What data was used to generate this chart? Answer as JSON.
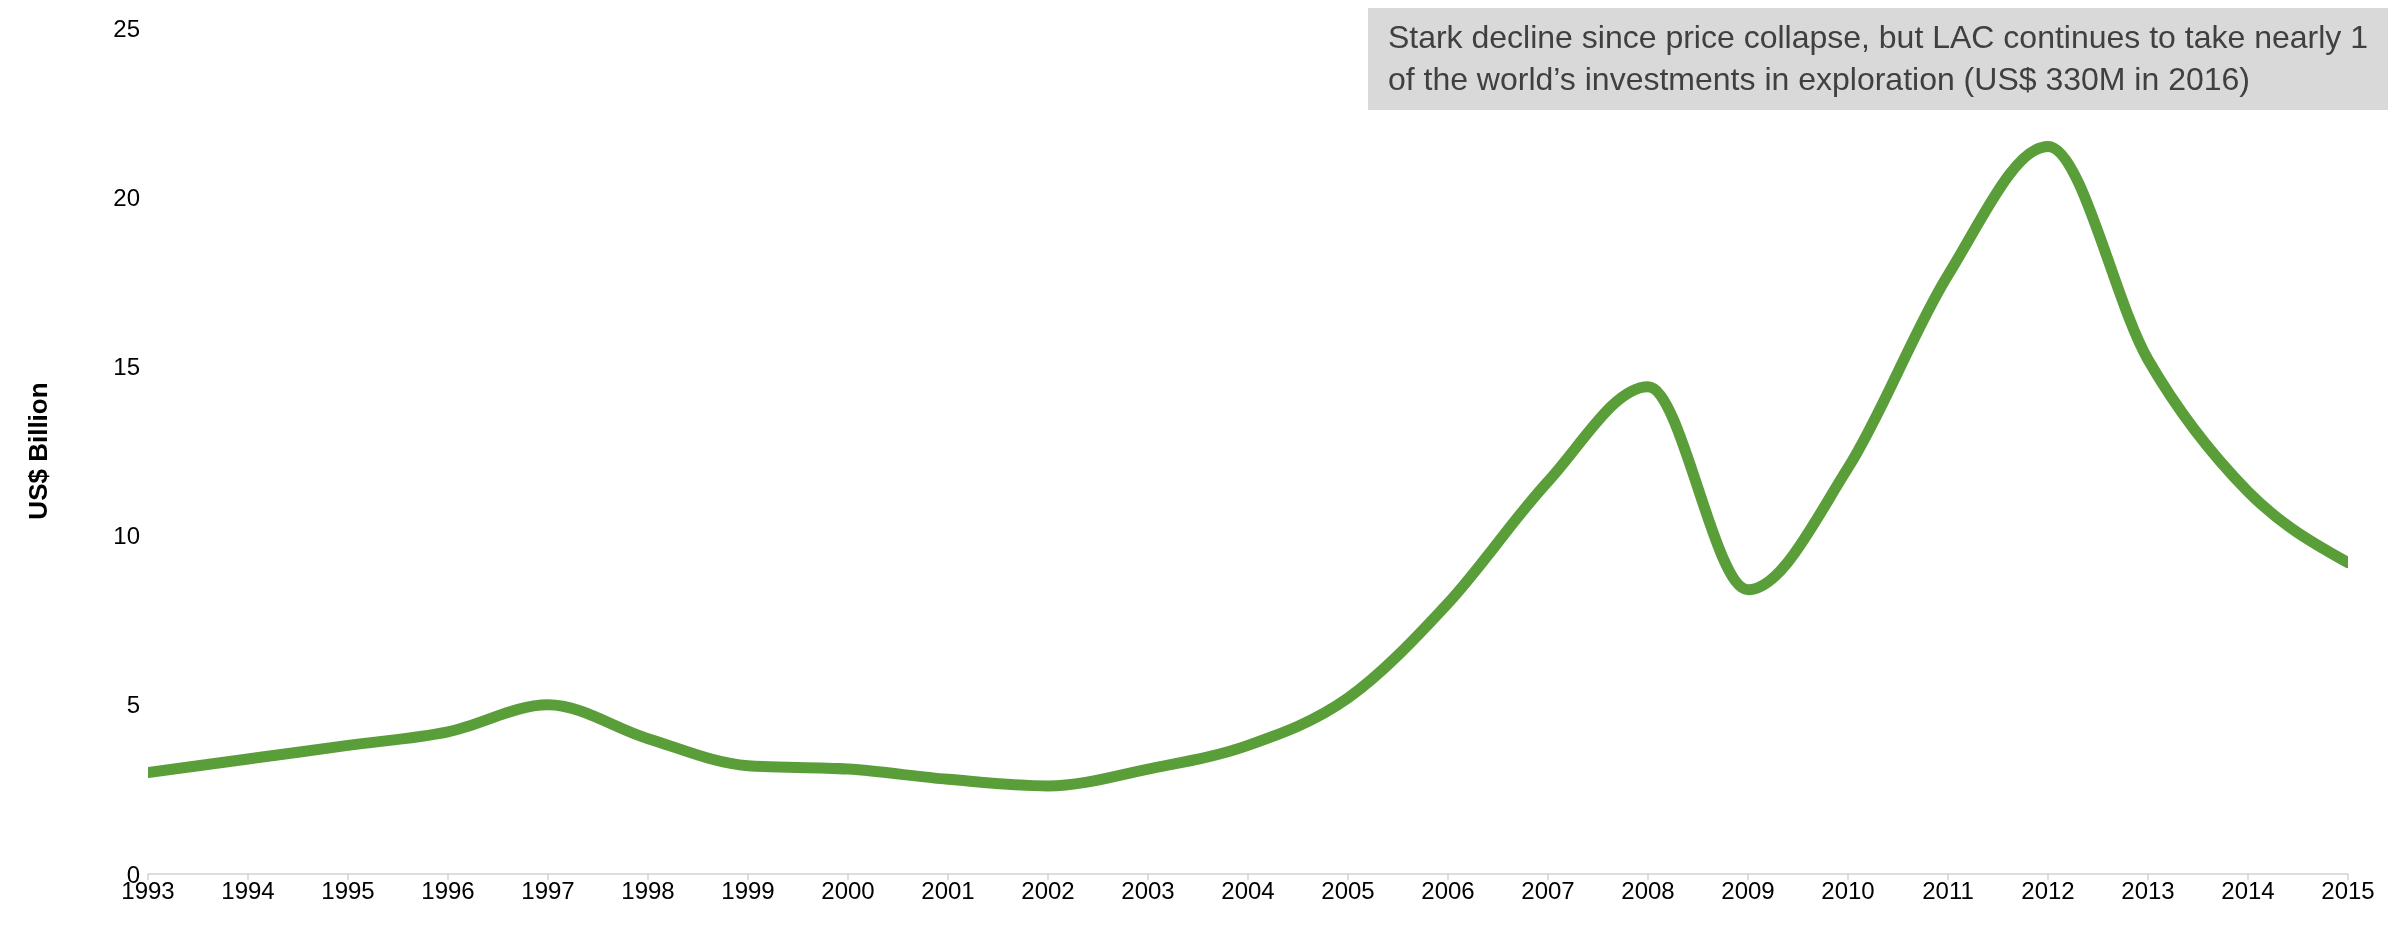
{
  "chart_data": {
    "type": "line",
    "ylabel": "US$ Billion",
    "annotations": [
      "Stark decline since price collapse, but LAC continues to take nearly 1\nof the world’s investments in exploration (US$ 330M in 2016)"
    ],
    "x": [
      1993,
      1994,
      1995,
      1996,
      1997,
      1998,
      1999,
      2000,
      2001,
      2002,
      2003,
      2004,
      2005,
      2006,
      2007,
      2008,
      2009,
      2010,
      2011,
      2012,
      2013,
      2014,
      2015
    ],
    "series": [
      {
        "color": "#5a9e3a",
        "values": [
          3.0,
          3.4,
          3.8,
          4.2,
          5.0,
          4.0,
          3.2,
          3.1,
          2.8,
          2.6,
          3.1,
          3.8,
          5.2,
          8.0,
          11.6,
          14.4,
          8.4,
          12.0,
          17.7,
          21.5,
          15.2,
          11.3,
          9.2
        ]
      }
    ],
    "xlim": [
      1993,
      2015
    ],
    "xticks": [
      1993,
      1994,
      1995,
      1996,
      1997,
      1998,
      1999,
      2000,
      2001,
      2002,
      2003,
      2004,
      2005,
      2006,
      2007,
      2008,
      2009,
      2010,
      2011,
      2012,
      2013,
      2014,
      2015
    ],
    "ylim": [
      0,
      25
    ],
    "yticks": [
      0,
      5,
      10,
      15,
      20,
      25
    ],
    "marker": "none",
    "line_style": "solid",
    "legend": false,
    "grid": false
  }
}
